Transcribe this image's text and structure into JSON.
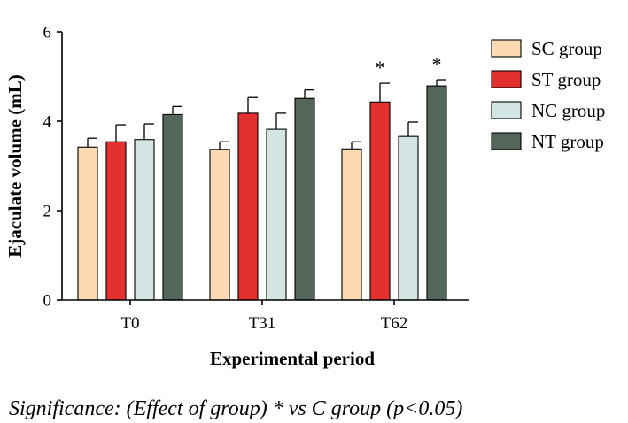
{
  "chart_data": {
    "type": "bar",
    "categories": [
      "T0",
      "T31",
      "T62"
    ],
    "series": [
      {
        "name": "SC group",
        "color": "#FCDBB4",
        "values": [
          3.42,
          3.37,
          3.38
        ],
        "errors": [
          0.2,
          0.17,
          0.16
        ],
        "significant": [
          false,
          false,
          false
        ]
      },
      {
        "name": "ST group",
        "color": "#E3302E",
        "values": [
          3.54,
          4.18,
          4.43
        ],
        "errors": [
          0.38,
          0.35,
          0.42
        ],
        "significant": [
          false,
          false,
          true
        ]
      },
      {
        "name": "NC group",
        "color": "#D3E5E3",
        "values": [
          3.59,
          3.82,
          3.66
        ],
        "errors": [
          0.35,
          0.36,
          0.32
        ],
        "significant": [
          false,
          false,
          false
        ]
      },
      {
        "name": "NT group",
        "color": "#52665A",
        "values": [
          4.15,
          4.51,
          4.79
        ],
        "errors": [
          0.18,
          0.19,
          0.14
        ],
        "significant": [
          false,
          false,
          true
        ]
      }
    ],
    "xlabel": "Experimental period",
    "ylabel": "Ejaculate volume (mL)",
    "ylim": [
      0,
      6
    ],
    "yticks": [
      0,
      2,
      4,
      6
    ],
    "significance_marker": "*",
    "legend_position": "right",
    "grid": false
  },
  "footnote": "Significance: (Effect of group) * vs C group (p<0.05)"
}
